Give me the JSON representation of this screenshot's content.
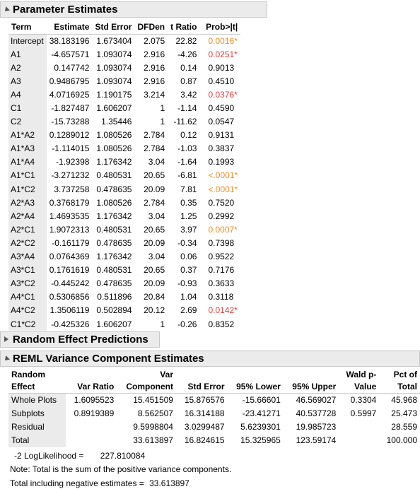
{
  "parameter_estimates": {
    "title": "Parameter Estimates",
    "headers": [
      "Term",
      "Estimate",
      "Std Error",
      "DFDen",
      "t Ratio",
      "Prob>|t|"
    ],
    "rows": [
      {
        "term": "Intercept",
        "estimate": "38.183196",
        "std_error": "1.673404",
        "dfden": "2.075",
        "t_ratio": "22.82",
        "prob": "0.0016*",
        "sig": "orange"
      },
      {
        "term": "A1",
        "estimate": "-4.657571",
        "std_error": "1.093074",
        "dfden": "2.916",
        "t_ratio": "-4.26",
        "prob": "0.0251*",
        "sig": "red"
      },
      {
        "term": "A2",
        "estimate": "0.147742",
        "std_error": "1.093074",
        "dfden": "2.916",
        "t_ratio": "0.14",
        "prob": "0.9013",
        "sig": ""
      },
      {
        "term": "A3",
        "estimate": "0.9486795",
        "std_error": "1.093074",
        "dfden": "2.916",
        "t_ratio": "0.87",
        "prob": "0.4510",
        "sig": ""
      },
      {
        "term": "A4",
        "estimate": "4.0716925",
        "std_error": "1.190175",
        "dfden": "3.214",
        "t_ratio": "3.42",
        "prob": "0.0376*",
        "sig": "red"
      },
      {
        "term": "C1",
        "estimate": "-1.827487",
        "std_error": "1.606207",
        "dfden": "1",
        "t_ratio": "-1.14",
        "prob": "0.4590",
        "sig": ""
      },
      {
        "term": "C2",
        "estimate": "-15.73288",
        "std_error": "1.35446",
        "dfden": "1",
        "t_ratio": "-11.62",
        "prob": "0.0547",
        "sig": ""
      },
      {
        "term": "A1*A2",
        "estimate": "0.1289012",
        "std_error": "1.080526",
        "dfden": "2.784",
        "t_ratio": "0.12",
        "prob": "0.9131",
        "sig": ""
      },
      {
        "term": "A1*A3",
        "estimate": "-1.114015",
        "std_error": "1.080526",
        "dfden": "2.784",
        "t_ratio": "-1.03",
        "prob": "0.3837",
        "sig": ""
      },
      {
        "term": "A1*A4",
        "estimate": "-1.92398",
        "std_error": "1.176342",
        "dfden": "3.04",
        "t_ratio": "-1.64",
        "prob": "0.1993",
        "sig": ""
      },
      {
        "term": "A1*C1",
        "estimate": "-3.271232",
        "std_error": "0.480531",
        "dfden": "20.65",
        "t_ratio": "-6.81",
        "prob": "<.0001*",
        "sig": "orange"
      },
      {
        "term": "A1*C2",
        "estimate": "3.737258",
        "std_error": "0.478635",
        "dfden": "20.09",
        "t_ratio": "7.81",
        "prob": "<.0001*",
        "sig": "orange"
      },
      {
        "term": "A2*A3",
        "estimate": "0.3768179",
        "std_error": "1.080526",
        "dfden": "2.784",
        "t_ratio": "0.35",
        "prob": "0.7520",
        "sig": ""
      },
      {
        "term": "A2*A4",
        "estimate": "1.4693535",
        "std_error": "1.176342",
        "dfden": "3.04",
        "t_ratio": "1.25",
        "prob": "0.2992",
        "sig": ""
      },
      {
        "term": "A2*C1",
        "estimate": "1.9072313",
        "std_error": "0.480531",
        "dfden": "20.65",
        "t_ratio": "3.97",
        "prob": "0.0007*",
        "sig": "orange"
      },
      {
        "term": "A2*C2",
        "estimate": "-0.161179",
        "std_error": "0.478635",
        "dfden": "20.09",
        "t_ratio": "-0.34",
        "prob": "0.7398",
        "sig": ""
      },
      {
        "term": "A3*A4",
        "estimate": "0.0764369",
        "std_error": "1.176342",
        "dfden": "3.04",
        "t_ratio": "0.06",
        "prob": "0.9522",
        "sig": ""
      },
      {
        "term": "A3*C1",
        "estimate": "0.1761619",
        "std_error": "0.480531",
        "dfden": "20.65",
        "t_ratio": "0.37",
        "prob": "0.7176",
        "sig": ""
      },
      {
        "term": "A3*C2",
        "estimate": "-0.445242",
        "std_error": "0.478635",
        "dfden": "20.09",
        "t_ratio": "-0.93",
        "prob": "0.3633",
        "sig": ""
      },
      {
        "term": "A4*C1",
        "estimate": "0.5306856",
        "std_error": "0.511896",
        "dfden": "20.84",
        "t_ratio": "1.04",
        "prob": "0.3118",
        "sig": ""
      },
      {
        "term": "A4*C2",
        "estimate": "1.3506119",
        "std_error": "0.502894",
        "dfden": "20.12",
        "t_ratio": "2.69",
        "prob": "0.0142*",
        "sig": "red"
      },
      {
        "term": "C1*C2",
        "estimate": "-0.425326",
        "std_error": "1.606207",
        "dfden": "1",
        "t_ratio": "-0.26",
        "prob": "0.8352",
        "sig": ""
      }
    ]
  },
  "random_effect_predictions": {
    "title": "Random Effect Predictions"
  },
  "reml": {
    "title": "REML Variance Component Estimates",
    "headers": {
      "random_effect": [
        "Random",
        "Effect"
      ],
      "var_ratio": [
        "",
        "Var Ratio"
      ],
      "var_component": [
        "Var",
        "Component"
      ],
      "std_error": [
        "",
        "Std Error"
      ],
      "lower": [
        "",
        "95% Lower"
      ],
      "upper": [
        "",
        "95% Upper"
      ],
      "wald": [
        "Wald p-",
        "Value"
      ],
      "pct": [
        "Pct of",
        "Total"
      ]
    },
    "rows": [
      {
        "effect": "Whole Plots",
        "var_ratio": "1.6095523",
        "var_component": "15.451509",
        "std_error": "15.876576",
        "lower": "-15.66601",
        "upper": "46.569027",
        "wald": "0.3304",
        "pct": "45.968"
      },
      {
        "effect": "Subplots",
        "var_ratio": "0.8919389",
        "var_component": "8.562507",
        "std_error": "16.314188",
        "lower": "-23.41271",
        "upper": "40.537728",
        "wald": "0.5997",
        "pct": "25.473"
      },
      {
        "effect": "Residual",
        "var_ratio": "",
        "var_component": "9.5998804",
        "std_error": "3.0299487",
        "lower": "5.6239301",
        "upper": "19.985723",
        "wald": "",
        "pct": "28.559"
      },
      {
        "effect": "Total",
        "var_ratio": "",
        "var_component": "33.613897",
        "std_error": "16.824615",
        "lower": "15.325965",
        "upper": "123.59174",
        "wald": "",
        "pct": "100.000"
      }
    ],
    "loglik_label": "-2 LogLikelihood =",
    "loglik_value": "227.810084",
    "note": "Note: Total is the sum of the positive variance components.",
    "total_neg_label": "Total including negative estimates =",
    "total_neg_value": "33.613897"
  },
  "colors": {
    "sig_red": "#e04040",
    "sig_orange": "#f28c28",
    "header_bg": "#ebebeb"
  }
}
